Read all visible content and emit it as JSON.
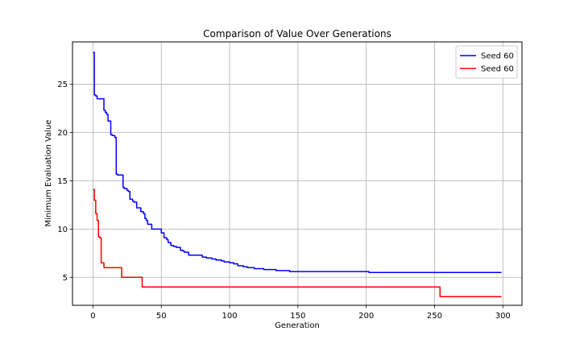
{
  "chart_data": {
    "type": "line",
    "title": "Comparison of Value Over Generations",
    "xlabel": "Generation",
    "ylabel": "Minimum Evaluation Value",
    "xlim": [
      -15,
      314
    ],
    "ylim": [
      2.1,
      29.4
    ],
    "xticks": [
      0,
      50,
      100,
      150,
      200,
      250,
      300
    ],
    "yticks": [
      5,
      10,
      15,
      20,
      25
    ],
    "grid": true,
    "legend_position": "top-right",
    "series": [
      {
        "name": "Seed 60",
        "color": "#0000ff",
        "x": [
          0,
          1,
          1,
          2,
          2,
          3,
          3,
          8,
          8,
          9,
          9,
          10,
          10,
          11,
          11,
          13,
          13,
          14,
          14,
          16,
          16,
          17,
          17,
          18,
          18,
          22,
          22,
          23,
          23,
          25,
          25,
          26,
          26,
          27,
          27,
          29,
          29,
          30,
          30,
          32,
          32,
          35,
          35,
          37,
          37,
          38,
          38,
          39,
          39,
          40,
          40,
          41,
          41,
          43,
          43,
          48,
          48,
          50,
          50,
          52,
          52,
          54,
          54,
          55,
          55,
          57,
          57,
          59,
          59,
          61,
          61,
          64,
          64,
          66,
          66,
          67,
          67,
          68,
          68,
          70,
          70,
          73,
          73,
          80,
          80,
          83,
          83,
          87,
          87,
          90,
          90,
          94,
          94,
          96,
          96,
          100,
          100,
          103,
          103,
          106,
          106,
          110,
          110,
          113,
          113,
          118,
          118,
          125,
          125,
          129,
          129,
          134,
          134,
          137,
          137,
          144,
          144,
          200,
          200,
          202,
          202,
          299
        ],
        "y": [
          28.3,
          28.3,
          23.9,
          23.9,
          23.8,
          23.8,
          23.5,
          23.5,
          22.3,
          22.3,
          22.1,
          22.1,
          21.9,
          21.9,
          21.2,
          21.2,
          19.8,
          19.8,
          19.7,
          19.7,
          19.5,
          19.5,
          15.7,
          15.7,
          15.6,
          15.6,
          14.3,
          14.3,
          14.2,
          14.2,
          14.0,
          14.0,
          13.9,
          13.9,
          13.1,
          13.1,
          12.9,
          12.9,
          12.8,
          12.8,
          12.2,
          12.2,
          11.8,
          11.8,
          11.6,
          11.6,
          11.1,
          11.1,
          10.9,
          10.9,
          10.5,
          10.5,
          10.5,
          10.5,
          10.0,
          10.0,
          10.0,
          10.0,
          9.6,
          9.6,
          9.1,
          9.1,
          8.9,
          8.9,
          8.6,
          8.6,
          8.3,
          8.3,
          8.2,
          8.2,
          8.1,
          8.1,
          7.8,
          7.8,
          7.7,
          7.7,
          7.6,
          7.6,
          7.6,
          7.6,
          7.3,
          7.3,
          7.3,
          7.3,
          7.1,
          7.1,
          7.0,
          7.0,
          6.9,
          6.9,
          6.8,
          6.8,
          6.7,
          6.7,
          6.6,
          6.6,
          6.5,
          6.5,
          6.4,
          6.4,
          6.2,
          6.2,
          6.1,
          6.1,
          6.0,
          6.0,
          5.9,
          5.9,
          5.8,
          5.8,
          5.8,
          5.8,
          5.7,
          5.7,
          5.7,
          5.7,
          5.6,
          5.6,
          5.6,
          5.6,
          5.5,
          5.5
        ]
      },
      {
        "name": "Seed 60",
        "color": "#ff0000",
        "x": [
          0,
          1,
          1,
          2,
          2,
          3,
          3,
          4,
          4,
          5,
          5,
          6,
          6,
          8,
          8,
          20,
          20,
          21,
          21,
          35,
          35,
          36,
          36,
          253,
          253,
          254,
          254,
          299
        ],
        "y": [
          14.1,
          14.1,
          13.0,
          13.0,
          11.6,
          11.6,
          10.9,
          10.9,
          9.2,
          9.2,
          9.1,
          9.1,
          6.5,
          6.5,
          6.0,
          6.0,
          6.0,
          6.0,
          5.0,
          5.0,
          5.0,
          5.0,
          4.0,
          4.0,
          4.0,
          4.0,
          3.0,
          3.0
        ]
      }
    ]
  }
}
